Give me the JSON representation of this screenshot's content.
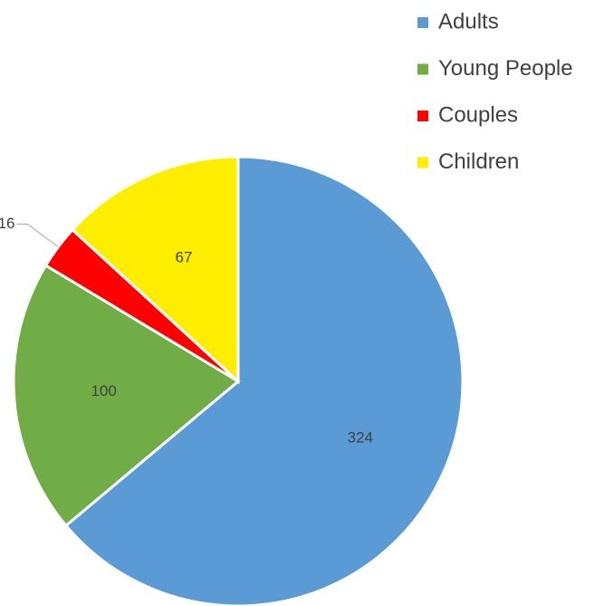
{
  "chart_data": {
    "type": "pie",
    "categories": [
      "Adults",
      "Young People",
      "Couples",
      "Children"
    ],
    "values": [
      324,
      100,
      16,
      67
    ],
    "colors": [
      "#5b9bd5",
      "#70ad47",
      "#ff0000",
      "#ffee00"
    ],
    "legend": "top-right"
  }
}
